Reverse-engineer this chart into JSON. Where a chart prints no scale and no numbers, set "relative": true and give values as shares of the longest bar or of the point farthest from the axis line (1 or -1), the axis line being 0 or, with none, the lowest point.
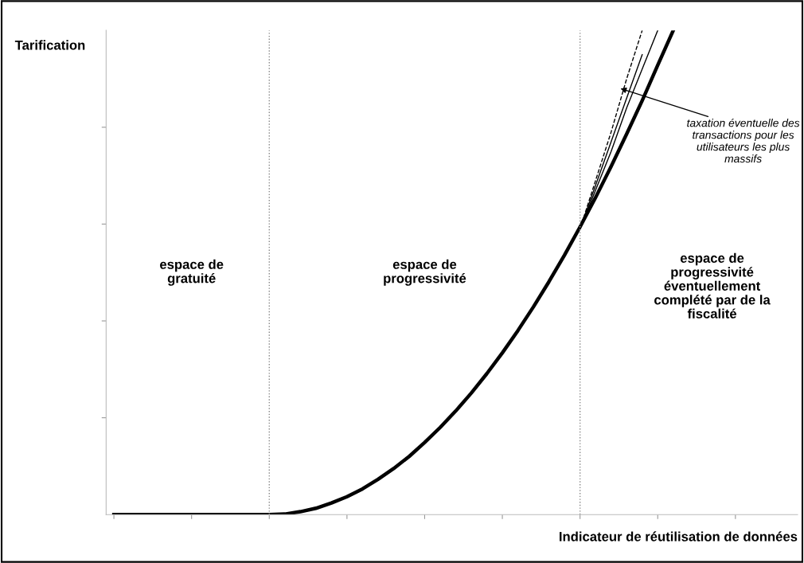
{
  "chart_data": {
    "type": "line",
    "relative": true,
    "ylabel": "Tarification",
    "xlabel": "Indicateur de réutilisation de données",
    "categories": [
      null,
      null,
      null,
      null,
      null,
      null,
      null,
      null,
      null,
      null,
      null,
      null,
      null,
      null,
      null,
      null,
      null,
      null,
      null,
      null,
      null,
      null,
      null,
      null,
      null,
      null,
      null,
      null,
      null,
      null,
      null,
      null,
      null,
      null,
      null,
      null,
      null,
      null,
      null,
      null,
      null,
      null,
      null,
      null,
      null
    ],
    "series": [
      {
        "color": "#000000",
        "values": [
          0,
          0,
          0,
          0,
          0,
          0,
          0,
          0,
          0,
          0,
          0,
          0.001,
          0.006,
          0.013,
          0.024,
          0.037,
          0.053,
          0.073,
          0.095,
          0.12,
          0.149,
          0.18,
          0.214,
          0.251,
          0.291,
          0.334,
          0.38,
          0.429,
          0.481,
          0.536,
          0.594,
          0.655,
          0.719,
          0.786,
          0.855,
          0.928,
          1.0,
          null,
          null,
          null,
          null,
          null,
          null,
          null,
          null
        ]
      },
      {
        "color": "#000000",
        "line_style": "dashed",
        "values": [
          null,
          null,
          null,
          null,
          null,
          null,
          null,
          null,
          null,
          null,
          null,
          null,
          null,
          null,
          null,
          null,
          null,
          null,
          null,
          null,
          null,
          null,
          null,
          null,
          null,
          null,
          null,
          null,
          null,
          null,
          0.59,
          0.69,
          0.79,
          0.9,
          1.0,
          null,
          null,
          null,
          null,
          null,
          null,
          null,
          null,
          null,
          null
        ]
      },
      {
        "color": "#000000",
        "values": [
          null,
          null,
          null,
          null,
          null,
          null,
          null,
          null,
          null,
          null,
          null,
          null,
          null,
          null,
          null,
          null,
          null,
          null,
          null,
          null,
          null,
          null,
          null,
          null,
          null,
          null,
          null,
          null,
          null,
          null,
          0.59,
          0.68,
          0.77,
          0.86,
          0.95,
          null,
          null,
          null,
          null,
          null,
          null,
          null,
          null,
          null,
          null
        ]
      },
      {
        "color": "#000000",
        "values": [
          null,
          null,
          null,
          null,
          null,
          null,
          null,
          null,
          null,
          null,
          null,
          null,
          null,
          null,
          null,
          null,
          null,
          null,
          null,
          null,
          null,
          null,
          null,
          null,
          null,
          null,
          null,
          null,
          null,
          null,
          0.59,
          0.67,
          0.75,
          0.84,
          0.92,
          1.0,
          null,
          null,
          null,
          null,
          null,
          null,
          null,
          null,
          null
        ]
      }
    ],
    "annotations": [
      "espace de\ngratuité",
      "espace de\nprogressivité",
      "espace de\nprogressivité\néventuellement\ncomplété par de la\nfiscalité",
      "taxation éventuelle des\ntransactions pour les\nutilisateurs les plus\nmassifs"
    ]
  }
}
